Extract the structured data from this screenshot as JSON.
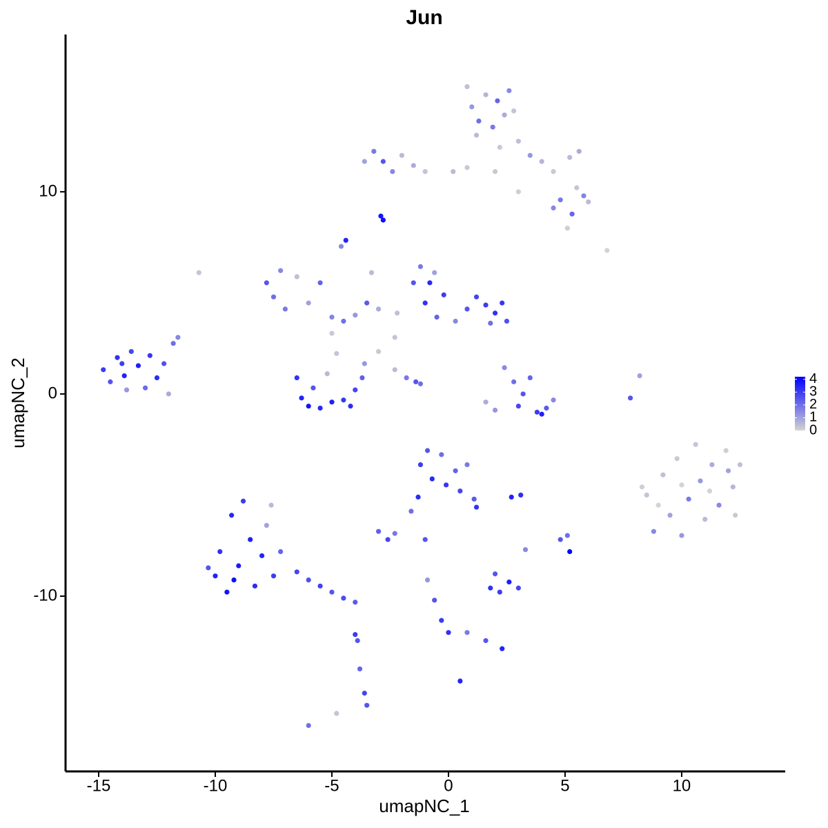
{
  "chart_data": {
    "type": "scatter",
    "title": "Jun",
    "x_label": "umapNC_1",
    "y_label": "umapNC_2",
    "xlim": [
      -16.42,
      14.44
    ],
    "ylim": [
      -18.67,
      17.78
    ],
    "xticks": [
      -15,
      -10,
      -5,
      0,
      5,
      10
    ],
    "yticks": [
      -10,
      0,
      10
    ],
    "color_low": "#d3d3d3",
    "color_high": "#0000ff",
    "colorbar": {
      "lim": [
        0,
        4.2
      ],
      "ticks": [
        0,
        1,
        2,
        3,
        4
      ]
    },
    "x": [
      -14.8,
      -14.5,
      -14.2,
      -13.9,
      -13.6,
      -13.3,
      -13.0,
      -12.8,
      -12.5,
      -12.2,
      -12.0,
      -11.8,
      -11.6,
      -13.8,
      -14.0,
      -10,
      -9.8,
      -9.5,
      -9.3,
      -9,
      -8.8,
      -8.5,
      -8.3,
      -8,
      -7.8,
      -7.5,
      -7.6,
      -7.2,
      -6.5,
      -6,
      -5.5,
      -5,
      -4.5,
      -4.0,
      -10.3,
      -9.2,
      -6.5,
      -6.3,
      -6,
      -5.5,
      -5,
      -4.5,
      -4,
      -3.7,
      -3.6,
      -4.8,
      -5.2,
      -5.8,
      -4.2,
      -5.0,
      -7.8,
      -7.5,
      -7.2,
      -7,
      -6.5,
      -6,
      -5.5,
      -5,
      -4.5,
      -4,
      -3.5,
      -3,
      -3.3,
      -4.6,
      -4.4,
      -10.7,
      -2.9,
      -2.8,
      -1.5,
      -1.2,
      -1,
      -0.8,
      -0.5,
      -0.2,
      0.3,
      0.8,
      1.2,
      1.6,
      2.0,
      2.5,
      1.8,
      -2.2,
      -2.3,
      -0.6,
      2.3,
      2.4,
      2.8,
      3.2,
      3.0,
      3.8,
      4.2,
      4.5,
      2.0,
      1.6,
      3.5,
      4.0,
      -2.3,
      -1.8,
      -1.4,
      -1.2,
      -3,
      0.8,
      1.0,
      1.3,
      1.6,
      1.9,
      2.1,
      2.4,
      2.6,
      2.8,
      1.2,
      2.2,
      3.0,
      3.5,
      4.0,
      4.5,
      5.2,
      5.6,
      4.8,
      5.3,
      4.5,
      5.8,
      6.0,
      5.5,
      3.0,
      2.0,
      5.1,
      6.8,
      -3.6,
      -3.2,
      -2.8,
      -2.4,
      -2.0,
      -1.5,
      -1.0,
      0.2,
      0.8,
      8.5,
      8.8,
      9.2,
      9.5,
      9.8,
      10.0,
      10.3,
      10.6,
      10.8,
      11.0,
      11.3,
      11.6,
      11.9,
      12.2,
      12.5,
      12.3,
      9.0,
      10.0,
      11.2,
      12.0,
      8.3,
      -1.2,
      -0.9,
      -0.7,
      -0.3,
      -0.1,
      0.3,
      0.5,
      0.8,
      1.1,
      1.2,
      -1.3,
      -3.0,
      -2.6,
      -2.3,
      -1.6,
      -1.0,
      2.7,
      3.1,
      1.8,
      2.2,
      2.6,
      3.0,
      2.0,
      3.3,
      4.8,
      5.1,
      5.2,
      -0.9,
      -0.6,
      -0.3,
      0,
      0.8,
      1.6,
      2.3,
      0.5,
      7.8,
      8.2,
      -3.8,
      -3.6,
      -3.5,
      -3.9,
      -6,
      -4.8,
      -4.0
    ],
    "y": [
      1.2,
      0.6,
      1.8,
      0.9,
      2.1,
      1.4,
      0.3,
      1.9,
      0.8,
      1.5,
      0.0,
      2.5,
      2.8,
      0.2,
      1.5,
      -9,
      -7.8,
      -9.8,
      -6.0,
      -8.5,
      -5.3,
      -7.2,
      -9.5,
      -8.0,
      -6.5,
      -9.0,
      -5.5,
      -7.8,
      -8.8,
      -9.2,
      -9.5,
      -9.8,
      -10.1,
      -10.3,
      -8.6,
      -9.2,
      0.8,
      -0.2,
      -0.6,
      -0.7,
      -0.4,
      -0.3,
      0.2,
      0.8,
      1.5,
      2.0,
      1.0,
      0.3,
      -0.6,
      3.0,
      5.5,
      4.8,
      6.1,
      4.2,
      5.8,
      4.5,
      5.5,
      3.8,
      3.6,
      3.9,
      4.5,
      4.2,
      6.0,
      7.3,
      7.6,
      6.0,
      8.8,
      8.6,
      5.5,
      6.3,
      4.5,
      5.5,
      3.8,
      4.9,
      3.6,
      4.2,
      4.8,
      4.4,
      4.0,
      3.6,
      3.5,
      4.0,
      2.8,
      6.0,
      4.5,
      1.3,
      0.6,
      0.0,
      -0.6,
      -0.9,
      -0.7,
      -0.3,
      -0.8,
      -0.4,
      0.8,
      -1.0,
      1.2,
      0.8,
      0.6,
      0.5,
      2.1,
      15.2,
      14.2,
      13.5,
      14.8,
      13.2,
      14.5,
      13.8,
      15.0,
      14.0,
      12.8,
      12.2,
      12.5,
      11.8,
      11.5,
      11.0,
      11.7,
      12.0,
      9.6,
      8.9,
      9.2,
      9.8,
      9.5,
      10.2,
      10.0,
      11.0,
      8.2,
      7.1,
      11.5,
      12.0,
      11.5,
      11.0,
      11.8,
      11.3,
      11.0,
      11.0,
      11.2,
      -5,
      -6.8,
      -4,
      -6,
      -3.2,
      -7.0,
      -5.2,
      -2.5,
      -4.3,
      -6.2,
      -3.5,
      -5.5,
      -2.8,
      -4.6,
      -3.5,
      -6.0,
      -5.5,
      -4.5,
      -4.8,
      -3.8,
      -4.6,
      -3.5,
      -2.8,
      -4.2,
      -3.0,
      -4.5,
      -3.8,
      -4.8,
      -3.5,
      -5.2,
      -5.6,
      -5.1,
      -6.8,
      -7.2,
      -6.9,
      -5.8,
      -7.2,
      -5.1,
      -5.0,
      -9.6,
      -9.8,
      -9.3,
      -9.6,
      -8.9,
      -7.7,
      -7.2,
      -7.0,
      -7.8,
      -9.2,
      -10.2,
      -11.2,
      -11.8,
      -11.8,
      -12.2,
      -12.6,
      -14.2,
      -0.2,
      0.9,
      -13.6,
      -14.8,
      -15.4,
      -12.2,
      -16.4,
      -15.8,
      -11.9
    ],
    "values": [
      3,
      2.5,
      3.2,
      3.5,
      2.8,
      3.6,
      2.1,
      3.1,
      3.3,
      2.6,
      0.8,
      2.0,
      1.5,
      1.2,
      3.0,
      3.5,
      3.2,
      3.8,
      3.4,
      3.7,
      3.0,
      3.6,
      3.3,
      3.5,
      1.0,
      3.0,
      0.5,
      2.2,
      2.8,
      2.6,
      2.9,
      2.5,
      2.7,
      2.4,
      2.5,
      3.9,
      3.2,
      3.5,
      3.8,
      3.4,
      3.6,
      3.1,
      2.8,
      2.3,
      1.2,
      0.3,
      0.5,
      2.5,
      3.3,
      0.2,
      2.5,
      2.0,
      1.5,
      1.8,
      0.4,
      1.0,
      2.2,
      1.6,
      2.0,
      1.2,
      2.4,
      0.8,
      0.5,
      1.5,
      3.5,
      0.3,
      3.8,
      3.9,
      2.5,
      1.8,
      3.2,
      3.4,
      2.2,
      3.0,
      1.5,
      2.5,
      2.8,
      3.0,
      3.2,
      2.6,
      2.0,
      0.4,
      0.3,
      1.0,
      3.1,
      1.5,
      2.0,
      2.5,
      2.8,
      3.0,
      2.4,
      1.5,
      1.2,
      0.8,
      2.2,
      3.6,
      0.5,
      1.8,
      2.5,
      2.0,
      0.2,
      0.4,
      1.2,
      2.0,
      0.6,
      1.8,
      2.2,
      0.8,
      1.5,
      0.3,
      0.5,
      0.2,
      0.4,
      1.2,
      0.6,
      0.2,
      0.5,
      0.8,
      1.8,
      2.2,
      1.5,
      1.6,
      0.5,
      0.3,
      0.1,
      0.2,
      0.1,
      0.0,
      1.0,
      1.8,
      2.5,
      1.5,
      0.5,
      0.8,
      0.3,
      0.5,
      0.2,
      0.3,
      1.5,
      0.4,
      1.0,
      0.2,
      1.2,
      1.8,
      0.3,
      1.2,
      0.5,
      0.8,
      1.5,
      0.1,
      0.6,
      0.4,
      0.2,
      0.0,
      0.0,
      0.0,
      1.0,
      0.1,
      3.0,
      2.5,
      3.4,
      2.0,
      3.1,
      2.2,
      2.8,
      1.8,
      2.4,
      3.2,
      3.3,
      2.3,
      2.8,
      1.8,
      2.0,
      2.5,
      3.5,
      3.3,
      3.2,
      3.0,
      3.6,
      2.8,
      2.5,
      1.5,
      2.5,
      2.0,
      4.2,
      1.2,
      2.5,
      3.0,
      3.2,
      1.8,
      2.5,
      3.5,
      3.5,
      2.5,
      1.0,
      2.2,
      2.8,
      2.5,
      2.5,
      2.0,
      0.3,
      3.0
    ]
  }
}
